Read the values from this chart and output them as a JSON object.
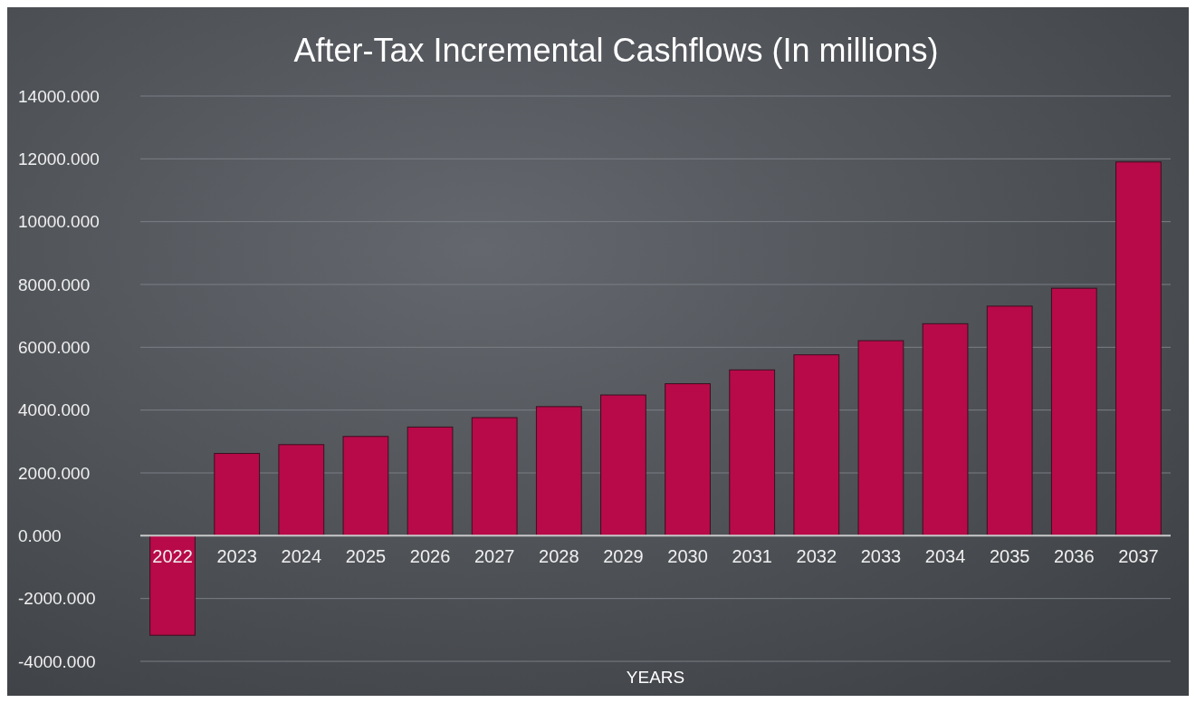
{
  "chart_data": {
    "type": "bar",
    "title": "After-Tax Incremental Cashflows (In millions)",
    "xlabel": "YEARS",
    "categories": [
      "2022",
      "2023",
      "2024",
      "2025",
      "2026",
      "2027",
      "2028",
      "2029",
      "2030",
      "2031",
      "2032",
      "2033",
      "2034",
      "2035",
      "2036",
      "2037"
    ],
    "values": [
      -3170,
      2620,
      2900,
      3160,
      3460,
      3760,
      4110,
      4480,
      4840,
      5280,
      5760,
      6210,
      6750,
      7310,
      7880,
      11900
    ],
    "color": "#b80a48",
    "ylim": [
      -4000,
      14000
    ],
    "yticks": [
      {
        "value": -4000,
        "label": "-4000.000"
      },
      {
        "value": -2000,
        "label": "-2000.000"
      },
      {
        "value": 0,
        "label": "0.000"
      },
      {
        "value": 2000,
        "label": "2000.000"
      },
      {
        "value": 4000,
        "label": "4000.000"
      },
      {
        "value": 6000,
        "label": "6000.000"
      },
      {
        "value": 8000,
        "label": "8000.000"
      },
      {
        "value": 10000,
        "label": "10000.000"
      },
      {
        "value": 12000,
        "label": "12000.000"
      },
      {
        "value": 14000,
        "label": "14000.000"
      }
    ],
    "grid": "y"
  }
}
